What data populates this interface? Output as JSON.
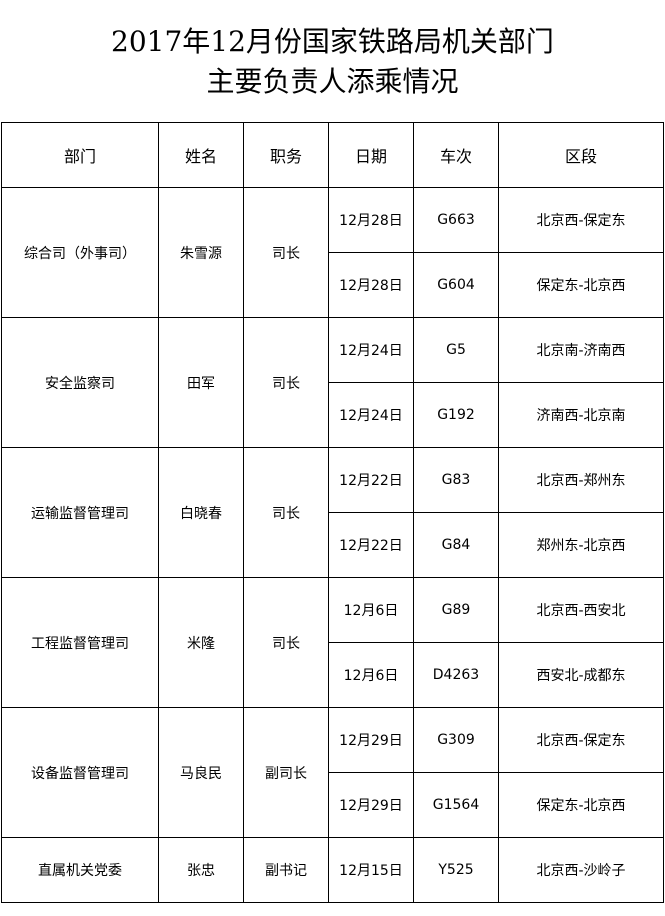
{
  "title": {
    "line1": "2017年12月份国家铁路局机关部门",
    "line2": "主要负责人添乘情况"
  },
  "headers": [
    "部门",
    "姓名",
    "职务",
    "日期",
    "车次",
    "区段"
  ],
  "groups": [
    {
      "dept": "综合司（外事司）",
      "name": "朱雪源",
      "position": "司长",
      "trips": [
        {
          "date": "12月28日",
          "train": "G663",
          "section": "北京西-保定东"
        },
        {
          "date": "12月28日",
          "train": "G604",
          "section": "保定东-北京西"
        }
      ]
    },
    {
      "dept": "安全监察司",
      "name": "田军",
      "position": "司长",
      "trips": [
        {
          "date": "12月24日",
          "train": "G5",
          "section": "北京南-济南西"
        },
        {
          "date": "12月24日",
          "train": "G192",
          "section": "济南西-北京南"
        }
      ]
    },
    {
      "dept": "运输监督管理司",
      "name": "白晓春",
      "position": "司长",
      "trips": [
        {
          "date": "12月22日",
          "train": "G83",
          "section": "北京西-郑州东"
        },
        {
          "date": "12月22日",
          "train": "G84",
          "section": "郑州东-北京西"
        }
      ]
    },
    {
      "dept": "工程监督管理司",
      "name": "米隆",
      "position": "司长",
      "trips": [
        {
          "date": "12月6日",
          "train": "G89",
          "section": "北京西-西安北"
        },
        {
          "date": "12月6日",
          "train": "D4263",
          "section": "西安北-成都东"
        }
      ]
    },
    {
      "dept": "设备监督管理司",
      "name": "马良民",
      "position": "副司长",
      "trips": [
        {
          "date": "12月29日",
          "train": "G309",
          "section": "北京西-保定东"
        },
        {
          "date": "12月29日",
          "train": "G1564",
          "section": "保定东-北京西"
        }
      ]
    },
    {
      "dept": "直属机关党委",
      "name": "张忠",
      "position": "副书记",
      "trips": [
        {
          "date": "12月15日",
          "train": "Y525",
          "section": "北京西-沙岭子"
        }
      ]
    }
  ]
}
